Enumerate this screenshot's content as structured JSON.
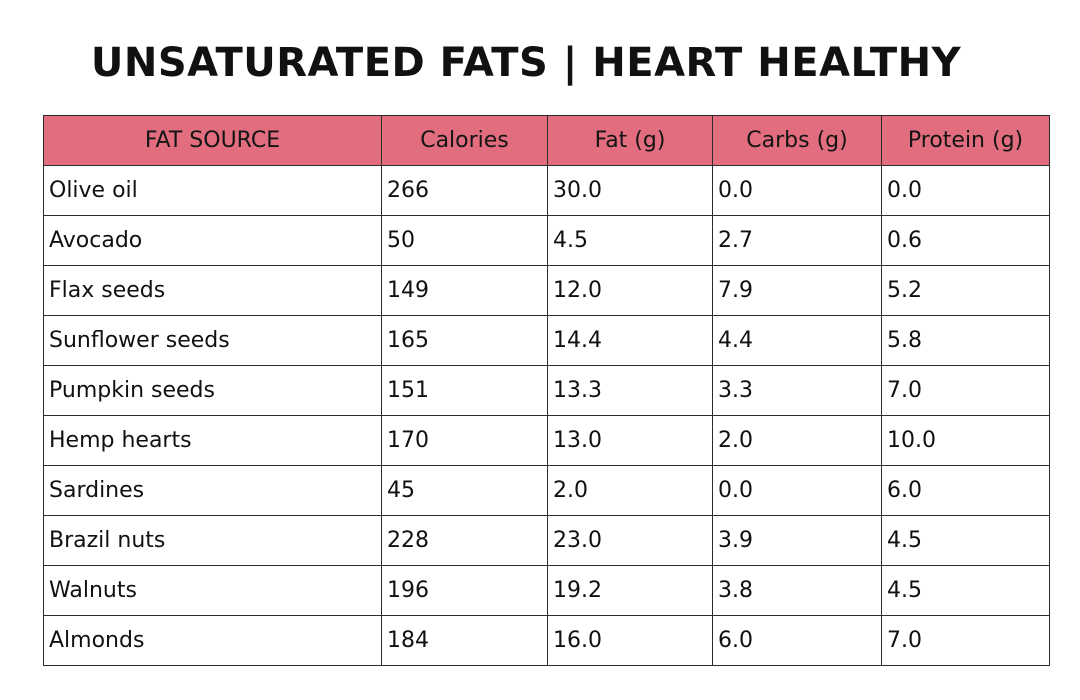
{
  "title": "UNSATURATED FATS | HEART HEALTHY",
  "header_color": "#e26d7f",
  "table": {
    "columns": [
      "FAT SOURCE",
      "Calories",
      "Fat (g)",
      "Carbs (g)",
      "Protein (g)"
    ],
    "rows": [
      [
        "Olive oil",
        "266",
        "30.0",
        "0.0",
        "0.0"
      ],
      [
        "Avocado",
        "50",
        "4.5",
        "2.7",
        "0.6"
      ],
      [
        "Flax seeds",
        "149",
        "12.0",
        "7.9",
        "5.2"
      ],
      [
        "Sunflower seeds",
        "165",
        "14.4",
        "4.4",
        "5.8"
      ],
      [
        "Pumpkin seeds",
        "151",
        "13.3",
        "3.3",
        "7.0"
      ],
      [
        "Hemp hearts",
        "170",
        "13.0",
        "2.0",
        "10.0"
      ],
      [
        "Sardines",
        "45",
        "2.0",
        "0.0",
        "6.0"
      ],
      [
        "Brazil nuts",
        "228",
        "23.0",
        "3.9",
        "4.5"
      ],
      [
        "Walnuts",
        "196",
        "19.2",
        "3.8",
        "4.5"
      ],
      [
        "Almonds",
        "184",
        "16.0",
        "6.0",
        "7.0"
      ]
    ]
  }
}
